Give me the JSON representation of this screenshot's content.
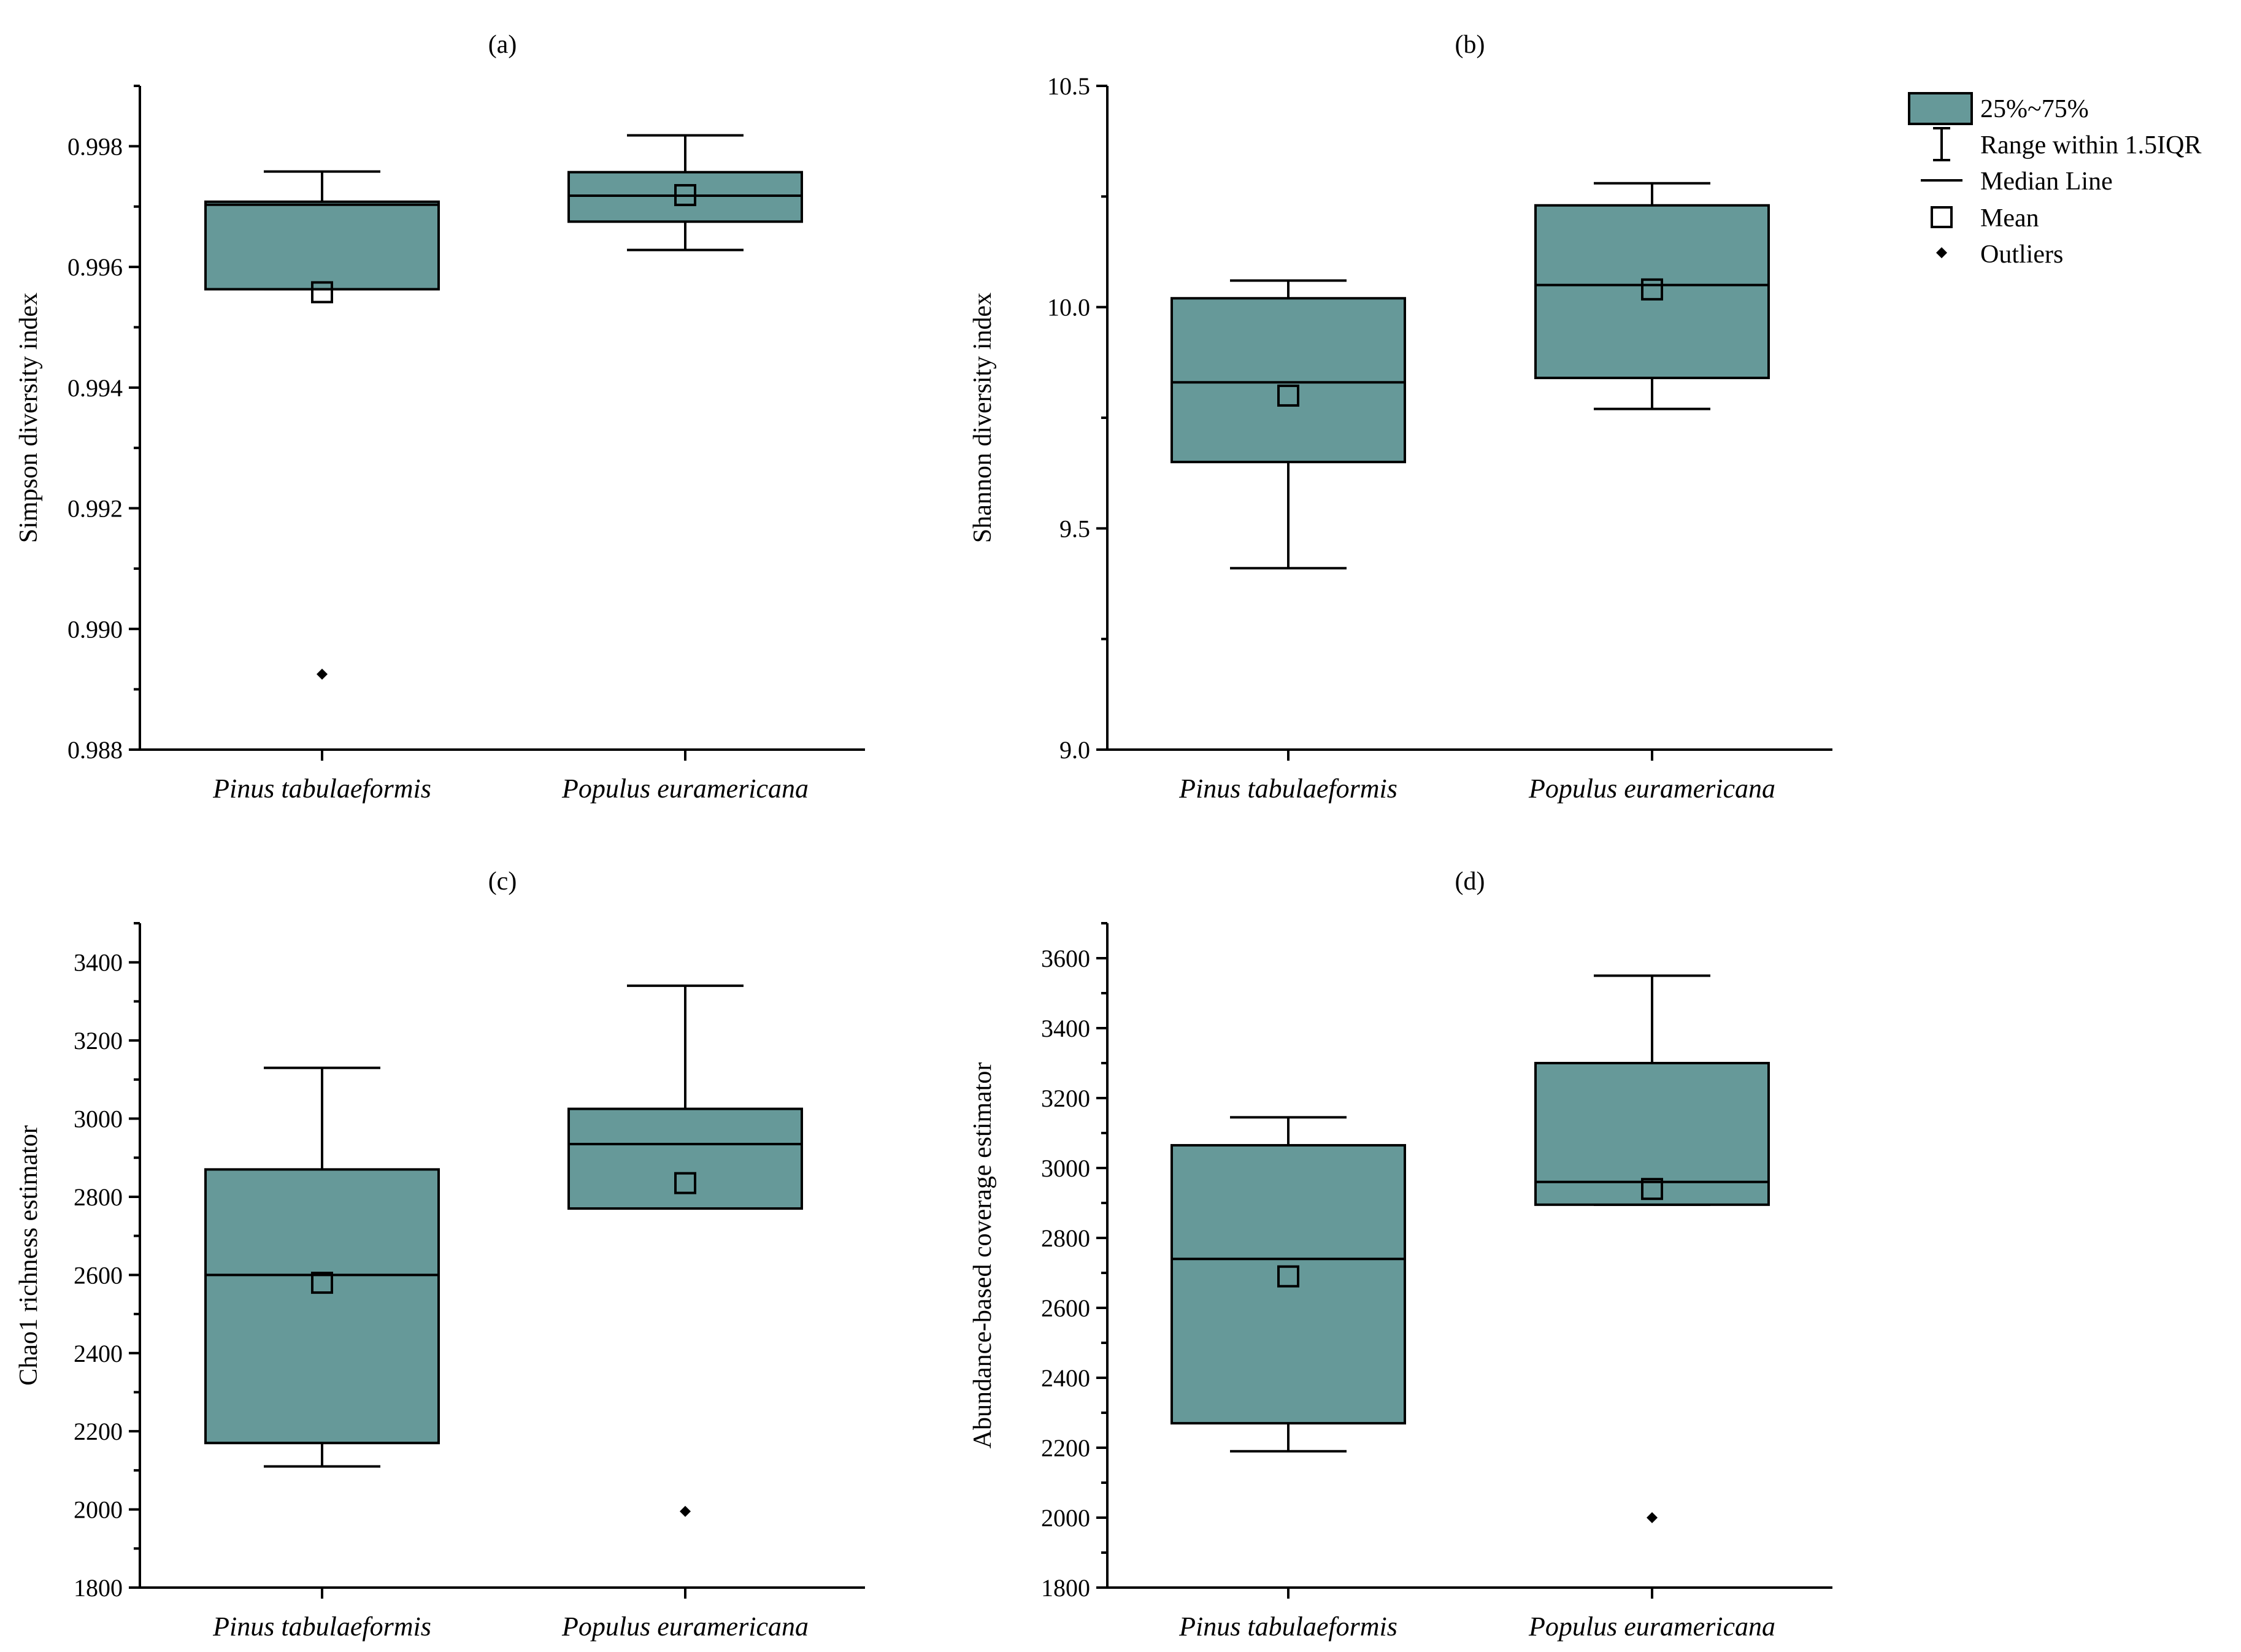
{
  "colors": {
    "box_fill": "#669999",
    "stroke": "#000000"
  },
  "legend": {
    "items": [
      {
        "key": "box",
        "label": "25%~75%"
      },
      {
        "key": "whisker",
        "label": "Range within 1.5IQR"
      },
      {
        "key": "median",
        "label": "Median Line"
      },
      {
        "key": "mean",
        "label": "Mean"
      },
      {
        "key": "outlier",
        "label": "Outliers"
      }
    ]
  },
  "chart_data": [
    {
      "type": "box",
      "title": "(a)",
      "ylabel": "Simpson diversity index",
      "categories": [
        "Pinus tabulaeformis",
        "Populus euramericana"
      ],
      "ylim": [
        0.988,
        0.999
      ],
      "yticks": [
        "0.988",
        "0.990",
        "0.992",
        "0.994",
        "0.996",
        "0.998"
      ],
      "ytick_values": [
        0.988,
        0.99,
        0.992,
        0.994,
        0.996,
        0.998
      ],
      "yminor": 0.001,
      "boxes": [
        {
          "whisker_low": 0.99563,
          "q1": 0.99563,
          "median": 0.99703,
          "q3": 0.99708,
          "whisker_high": 0.99758,
          "mean": 0.99558,
          "outliers": [
            0.98925
          ]
        },
        {
          "whisker_low": 0.99628,
          "q1": 0.99675,
          "median": 0.99718,
          "q3": 0.99757,
          "whisker_high": 0.99818,
          "mean": 0.99719,
          "outliers": []
        }
      ]
    },
    {
      "type": "box",
      "title": "(b)",
      "ylabel": "Shannon diversity index",
      "categories": [
        "Pinus tabulaeformis",
        "Populus euramericana"
      ],
      "ylim": [
        9.0,
        10.5
      ],
      "yticks": [
        "9.0",
        "9.5",
        "10.0",
        "10.5"
      ],
      "ytick_values": [
        9.0,
        9.5,
        10.0,
        10.5
      ],
      "yminor": 0.25,
      "boxes": [
        {
          "whisker_low": 9.41,
          "q1": 9.65,
          "median": 9.83,
          "q3": 10.02,
          "whisker_high": 10.06,
          "mean": 9.8,
          "outliers": []
        },
        {
          "whisker_low": 9.77,
          "q1": 9.84,
          "median": 10.05,
          "q3": 10.23,
          "whisker_high": 10.28,
          "mean": 10.04,
          "outliers": []
        }
      ]
    },
    {
      "type": "box",
      "title": "(c)",
      "ylabel": "Chao1 richness estimator",
      "categories": [
        "Pinus tabulaeformis",
        "Populus euramericana"
      ],
      "ylim": [
        1800,
        3500
      ],
      "yticks": [
        "1800",
        "2000",
        "2200",
        "2400",
        "2600",
        "2800",
        "3000",
        "3200",
        "3400"
      ],
      "ytick_values": [
        1800,
        2000,
        2200,
        2400,
        2600,
        2800,
        3000,
        3200,
        3400
      ],
      "yminor": 100,
      "boxes": [
        {
          "whisker_low": 2110,
          "q1": 2170,
          "median": 2600,
          "q3": 2870,
          "whisker_high": 3130,
          "mean": 2580,
          "outliers": []
        },
        {
          "whisker_low": 2770,
          "q1": 2770,
          "median": 2935,
          "q3": 3025,
          "whisker_high": 3340,
          "mean": 2835,
          "outliers": [
            1995
          ]
        }
      ]
    },
    {
      "type": "box",
      "title": "(d)",
      "ylabel": "Abundance-based coverage estimator",
      "categories": [
        "Pinus tabulaeformis",
        "Populus euramericana"
      ],
      "ylim": [
        1800,
        3700
      ],
      "yticks": [
        "1800",
        "2000",
        "2200",
        "2400",
        "2600",
        "2800",
        "3000",
        "3200",
        "3400",
        "3600"
      ],
      "ytick_values": [
        1800,
        2000,
        2200,
        2400,
        2600,
        2800,
        3000,
        3200,
        3400,
        3600
      ],
      "yminor": 100,
      "boxes": [
        {
          "whisker_low": 2190,
          "q1": 2270,
          "median": 2740,
          "q3": 3065,
          "whisker_high": 3145,
          "mean": 2690,
          "outliers": []
        },
        {
          "whisker_low": 2895,
          "q1": 2895,
          "median": 2960,
          "q3": 3300,
          "whisker_high": 3550,
          "mean": 2940,
          "outliers": [
            2000
          ]
        }
      ]
    }
  ]
}
